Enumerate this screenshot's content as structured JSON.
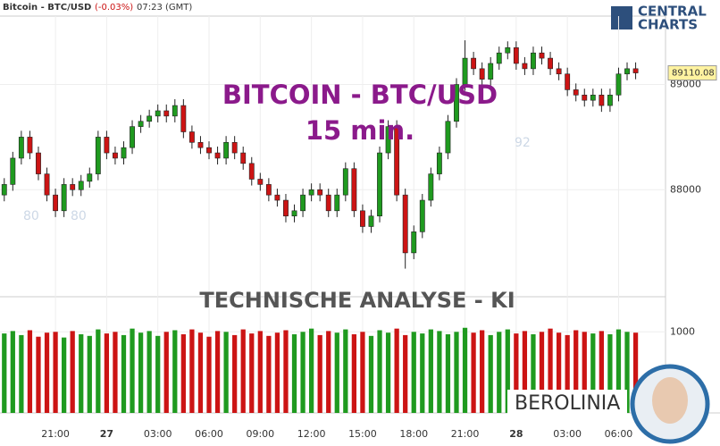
{
  "chart_data": {
    "type": "candlestick",
    "title": "Bitcoin - BTC/USD",
    "change": "(-0.03%)",
    "time": "07:23 (GMT)",
    "logo": [
      "CENTRAL",
      "CHARTS"
    ],
    "watermark": [
      "BITCOIN - BTC/USD",
      "15 min.",
      "TECHNISCHE  ANALYSE - KI",
      "BEROLINIA"
    ],
    "background_labels": [
      "80",
      "80",
      "92"
    ],
    "last_price": 89110.08,
    "up_color": "#1f9a1f",
    "down_color": "#cc1414",
    "grid": true,
    "x": [
      0,
      1,
      2,
      3,
      4,
      5,
      6,
      7,
      8,
      9,
      10,
      11,
      12,
      13,
      14,
      15,
      16,
      17,
      18,
      19,
      20,
      21,
      22,
      23,
      24,
      25,
      26,
      27,
      28,
      29,
      30,
      31,
      32,
      33,
      34,
      35,
      36,
      37,
      38,
      39,
      40,
      41,
      42,
      43,
      44,
      45,
      46,
      47,
      48,
      49,
      50,
      51,
      52,
      53,
      54,
      55,
      56,
      57,
      58,
      59,
      60,
      61,
      62,
      63,
      64,
      65,
      66,
      67,
      68,
      69,
      70,
      71,
      72,
      73,
      74
    ],
    "open": [
      87950,
      88050,
      88300,
      88500,
      88350,
      88150,
      87950,
      87800,
      88050,
      88000,
      88080,
      88150,
      88500,
      88350,
      88300,
      88400,
      88600,
      88650,
      88700,
      88750,
      88700,
      88800,
      88550,
      88450,
      88400,
      88350,
      88300,
      88450,
      88350,
      88250,
      88100,
      88050,
      87950,
      87900,
      87750,
      87800,
      87950,
      88000,
      87950,
      87800,
      87950,
      88200,
      87800,
      87650,
      87750,
      88350,
      88600,
      87950,
      87400,
      87600,
      87900,
      88150,
      88350,
      88650,
      89000,
      89250,
      89150,
      89050,
      89200,
      89300,
      89350,
      89200,
      89150,
      89300,
      89250,
      89150,
      89100,
      88950,
      88900,
      88850,
      88900,
      88800,
      88900,
      89100,
      89150
    ],
    "high": [
      88110,
      88360,
      88560,
      88560,
      88410,
      88210,
      88010,
      88110,
      88110,
      88140,
      88210,
      88560,
      88560,
      88410,
      88460,
      88660,
      88710,
      88760,
      88810,
      88810,
      88860,
      88860,
      88610,
      88510,
      88460,
      88410,
      88510,
      88510,
      88410,
      88310,
      88160,
      88110,
      88010,
      87960,
      87860,
      88010,
      88060,
      88060,
      88010,
      88010,
      88260,
      88260,
      87860,
      87810,
      88410,
      88660,
      88660,
      88010,
      87660,
      87960,
      88210,
      88410,
      88710,
      89060,
      89420,
      89310,
      89210,
      89260,
      89360,
      89410,
      89410,
      89260,
      89360,
      89360,
      89310,
      89210,
      89160,
      89010,
      88960,
      88960,
      88960,
      88960,
      89160,
      89210,
      89210
    ],
    "low": [
      87890,
      87990,
      88240,
      88290,
      88090,
      87890,
      87740,
      87740,
      87940,
      87940,
      88020,
      88090,
      88290,
      88240,
      88240,
      88340,
      88540,
      88590,
      88640,
      88640,
      88640,
      88490,
      88390,
      88340,
      88290,
      88240,
      88240,
      88290,
      88190,
      88040,
      87990,
      87890,
      87840,
      87690,
      87690,
      87740,
      87890,
      87890,
      87740,
      87740,
      87890,
      87740,
      87590,
      87590,
      87690,
      88290,
      87890,
      87250,
      87340,
      87540,
      87840,
      88090,
      88290,
      88590,
      88940,
      89090,
      88990,
      88990,
      89140,
      89240,
      89140,
      89090,
      89090,
      89190,
      89090,
      89040,
      88890,
      88840,
      88790,
      88790,
      88740,
      88740,
      88840,
      89040,
      89050
    ],
    "close": [
      88050,
      88300,
      88500,
      88350,
      88150,
      87950,
      87800,
      88050,
      88000,
      88080,
      88150,
      88500,
      88350,
      88300,
      88400,
      88600,
      88650,
      88700,
      88750,
      88700,
      88800,
      88550,
      88450,
      88400,
      88350,
      88300,
      88450,
      88350,
      88250,
      88100,
      88050,
      87950,
      87900,
      87750,
      87800,
      87950,
      88000,
      87950,
      87800,
      87950,
      88200,
      87800,
      87650,
      87750,
      88350,
      88600,
      87950,
      87400,
      87600,
      87900,
      88150,
      88350,
      88650,
      89000,
      89250,
      89150,
      89050,
      89200,
      89300,
      89350,
      89200,
      89150,
      89300,
      89250,
      89150,
      89100,
      88950,
      88900,
      88850,
      88900,
      88800,
      88900,
      89100,
      89150,
      89110
    ],
    "volume": [
      980,
      1010,
      960,
      1020,
      940,
      990,
      1000,
      930,
      1010,
      970,
      950,
      1030,
      980,
      1000,
      960,
      1040,
      990,
      1010,
      950,
      1000,
      1020,
      970,
      1030,
      990,
      940,
      1010,
      1000,
      960,
      1030,
      980,
      1010,
      950,
      990,
      1020,
      970,
      1000,
      1040,
      960,
      1010,
      990,
      1030,
      970,
      1000,
      950,
      1020,
      990,
      1040,
      960,
      1000,
      980,
      1030,
      1010,
      970,
      1000,
      1050,
      990,
      1020,
      960,
      1000,
      1030,
      980,
      1010,
      970,
      1000,
      1040,
      990,
      960,
      1020,
      1000,
      980,
      1010,
      970,
      1030,
      1000,
      990
    ],
    "xlim": [
      -0.5,
      77.5
    ],
    "xticks": [
      {
        "value": 6,
        "label": "21:00"
      },
      {
        "value": 12,
        "label": "27"
      },
      {
        "value": 18,
        "label": "03:00"
      },
      {
        "value": 24,
        "label": "06:00"
      },
      {
        "value": 30,
        "label": "09:00"
      },
      {
        "value": 36,
        "label": "12:00"
      },
      {
        "value": 42,
        "label": "15:00"
      },
      {
        "value": 48,
        "label": "18:00"
      },
      {
        "value": 54,
        "label": "21:00"
      },
      {
        "value": 60,
        "label": "28"
      },
      {
        "value": 66,
        "label": "03:00"
      },
      {
        "value": 72,
        "label": "06:00"
      }
    ],
    "ylim": [
      87000,
      89650
    ],
    "yticks": [
      88000,
      89000
    ],
    "volume_ylim": [
      0,
      1400
    ],
    "volume_yticks": [
      1000
    ]
  }
}
